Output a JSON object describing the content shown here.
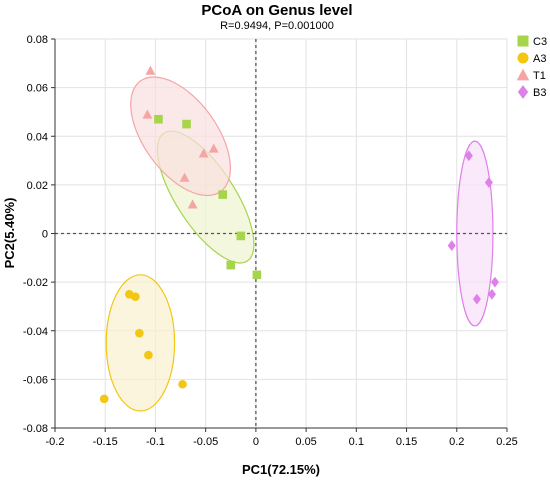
{
  "chart_data": {
    "type": "scatter",
    "title": "PCoA on Genus level",
    "subtitle": "R=0.9494, P=0.001000",
    "xlabel": "PC1(72.15%)",
    "ylabel": "PC2(5.40%)",
    "xlim": [
      -0.2,
      0.25
    ],
    "ylim": [
      -0.08,
      0.08
    ],
    "xticks": [
      -0.2,
      -0.15,
      -0.1,
      -0.05,
      0,
      0.05,
      0.1,
      0.15,
      0.2,
      0.25
    ],
    "yticks": [
      -0.08,
      -0.06,
      -0.04,
      -0.02,
      0,
      0.02,
      0.04,
      0.06,
      0.08
    ],
    "grid": true,
    "zero_lines": "dashed",
    "legend_position": "top-right",
    "series": [
      {
        "name": "C3",
        "marker": "square",
        "color": "#a6d44a",
        "fill": "#eef3cf",
        "points": [
          [
            -0.097,
            0.047
          ],
          [
            -0.069,
            0.045
          ],
          [
            -0.033,
            0.016
          ],
          [
            -0.015,
            -0.001
          ],
          [
            -0.025,
            -0.013
          ],
          [
            0.001,
            -0.017
          ]
        ],
        "ellipse": {
          "cx": -0.05,
          "cy": 0.015,
          "rx": 0.076,
          "ry": 0.012,
          "angle_deg": 57
        }
      },
      {
        "name": "A3",
        "marker": "circle",
        "color": "#f2c612",
        "fill": "#fbf1cf",
        "points": [
          [
            -0.151,
            -0.068
          ],
          [
            -0.126,
            -0.025
          ],
          [
            -0.12,
            -0.026
          ],
          [
            -0.116,
            -0.041
          ],
          [
            -0.107,
            -0.05
          ],
          [
            -0.073,
            -0.062
          ]
        ],
        "ellipse": {
          "cx": -0.115,
          "cy": -0.045,
          "rx": 0.034,
          "ry": 0.028,
          "angle_deg": 0
        }
      },
      {
        "name": "T1",
        "marker": "triangle",
        "color": "#f5a5a5",
        "fill": "#fae0e0",
        "points": [
          [
            -0.105,
            0.067
          ],
          [
            -0.108,
            0.049
          ],
          [
            -0.071,
            0.023
          ],
          [
            -0.052,
            0.033
          ],
          [
            -0.042,
            0.035
          ],
          [
            -0.063,
            0.012
          ]
        ],
        "ellipse": {
          "cx": -0.075,
          "cy": 0.04,
          "rx": 0.068,
          "ry": 0.015,
          "angle_deg": 54
        }
      },
      {
        "name": "B3",
        "marker": "diamond",
        "color": "#dd80e8",
        "fill": "#f7e0fa",
        "points": [
          [
            0.212,
            0.032
          ],
          [
            0.232,
            0.021
          ],
          [
            0.195,
            -0.005
          ],
          [
            0.238,
            -0.02
          ],
          [
            0.235,
            -0.025
          ],
          [
            0.22,
            -0.027
          ]
        ],
        "ellipse": {
          "cx": 0.218,
          "cy": 0.0,
          "rx": 0.018,
          "ry": 0.038,
          "angle_deg": 0
        }
      }
    ]
  }
}
